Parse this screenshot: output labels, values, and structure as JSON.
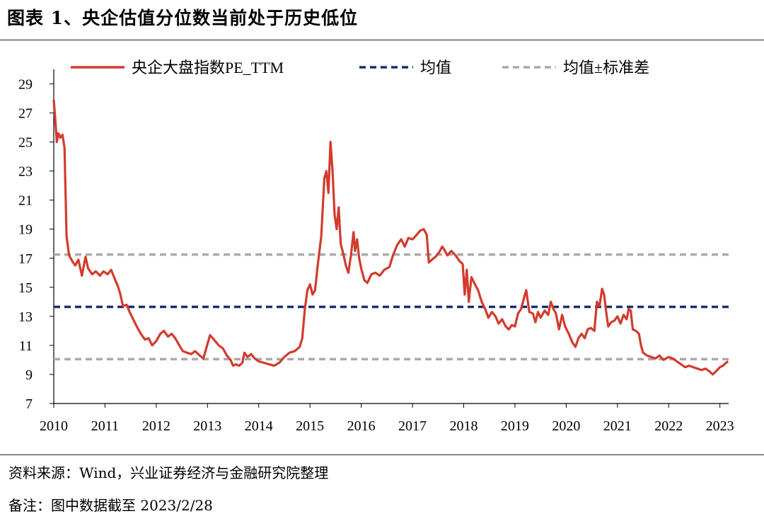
{
  "title": "图表 1、央企估值分位数当前处于历史低位",
  "source_note": "资料来源：Wind，兴业证券经济与金融研究院整理",
  "remark_note": "备注：图中数据截至 2023/2/28",
  "colors": {
    "line": "#d23b2d",
    "mean": "#1a2f6e",
    "band": "#aaaaaa"
  },
  "chart_data": {
    "type": "line",
    "title": "",
    "xlabel": "",
    "ylabel": "",
    "x_ticks": [
      "2010",
      "2011",
      "2012",
      "2013",
      "2014",
      "2015",
      "2016",
      "2017",
      "2018",
      "2019",
      "2020",
      "2021",
      "2022",
      "2023"
    ],
    "y_ticks": [
      7,
      9,
      11,
      13,
      15,
      17,
      19,
      21,
      23,
      25,
      27,
      29
    ],
    "xlim": [
      2010.0,
      2023.17
    ],
    "ylim": [
      7,
      30
    ],
    "grid": false,
    "legend_position": "top",
    "series": [
      {
        "name": "央企大盘指数PE_TTM",
        "style": "solid",
        "color": "#d23b2d",
        "points": [
          [
            2010.0,
            27.9
          ],
          [
            2010.03,
            26.5
          ],
          [
            2010.06,
            25.0
          ],
          [
            2010.09,
            25.6
          ],
          [
            2010.13,
            25.3
          ],
          [
            2010.17,
            25.5
          ],
          [
            2010.21,
            24.6
          ],
          [
            2010.25,
            18.5
          ],
          [
            2010.3,
            17.2
          ],
          [
            2010.36,
            16.8
          ],
          [
            2010.42,
            16.5
          ],
          [
            2010.48,
            16.9
          ],
          [
            2010.55,
            15.8
          ],
          [
            2010.62,
            17.1
          ],
          [
            2010.67,
            16.3
          ],
          [
            2010.75,
            15.9
          ],
          [
            2010.82,
            16.1
          ],
          [
            2010.9,
            15.8
          ],
          [
            2010.97,
            16.1
          ],
          [
            2011.05,
            15.9
          ],
          [
            2011.12,
            16.2
          ],
          [
            2011.2,
            15.5
          ],
          [
            2011.25,
            15.1
          ],
          [
            2011.3,
            14.5
          ],
          [
            2011.35,
            13.7
          ],
          [
            2011.42,
            13.8
          ],
          [
            2011.48,
            13.3
          ],
          [
            2011.55,
            12.8
          ],
          [
            2011.62,
            12.3
          ],
          [
            2011.7,
            11.8
          ],
          [
            2011.78,
            11.4
          ],
          [
            2011.85,
            11.5
          ],
          [
            2011.92,
            11.0
          ],
          [
            2012.0,
            11.3
          ],
          [
            2012.08,
            11.8
          ],
          [
            2012.15,
            12.0
          ],
          [
            2012.23,
            11.6
          ],
          [
            2012.3,
            11.8
          ],
          [
            2012.37,
            11.5
          ],
          [
            2012.45,
            11.0
          ],
          [
            2012.52,
            10.6
          ],
          [
            2012.6,
            10.5
          ],
          [
            2012.68,
            10.4
          ],
          [
            2012.76,
            10.6
          ],
          [
            2012.85,
            10.3
          ],
          [
            2012.92,
            10.1
          ],
          [
            2013.0,
            11.1
          ],
          [
            2013.05,
            11.7
          ],
          [
            2013.1,
            11.5
          ],
          [
            2013.15,
            11.3
          ],
          [
            2013.22,
            11.0
          ],
          [
            2013.3,
            10.8
          ],
          [
            2013.38,
            10.3
          ],
          [
            2013.45,
            10.0
          ],
          [
            2013.5,
            9.6
          ],
          [
            2013.55,
            9.7
          ],
          [
            2013.62,
            9.6
          ],
          [
            2013.68,
            9.8
          ],
          [
            2013.72,
            10.5
          ],
          [
            2013.78,
            10.2
          ],
          [
            2013.85,
            10.4
          ],
          [
            2013.92,
            10.1
          ],
          [
            2014.0,
            9.9
          ],
          [
            2014.1,
            9.8
          ],
          [
            2014.2,
            9.7
          ],
          [
            2014.3,
            9.6
          ],
          [
            2014.4,
            9.8
          ],
          [
            2014.5,
            10.2
          ],
          [
            2014.6,
            10.5
          ],
          [
            2014.7,
            10.6
          ],
          [
            2014.8,
            10.9
          ],
          [
            2014.85,
            11.5
          ],
          [
            2014.9,
            13.5
          ],
          [
            2014.95,
            14.8
          ],
          [
            2015.0,
            15.2
          ],
          [
            2015.05,
            14.5
          ],
          [
            2015.1,
            14.8
          ],
          [
            2015.15,
            16.5
          ],
          [
            2015.22,
            18.5
          ],
          [
            2015.28,
            22.5
          ],
          [
            2015.32,
            23.0
          ],
          [
            2015.36,
            21.5
          ],
          [
            2015.4,
            25.0
          ],
          [
            2015.44,
            23.0
          ],
          [
            2015.48,
            20.0
          ],
          [
            2015.52,
            19.0
          ],
          [
            2015.56,
            20.5
          ],
          [
            2015.6,
            18.0
          ],
          [
            2015.65,
            17.3
          ],
          [
            2015.7,
            16.5
          ],
          [
            2015.75,
            16.0
          ],
          [
            2015.8,
            17.2
          ],
          [
            2015.85,
            18.8
          ],
          [
            2015.88,
            17.5
          ],
          [
            2015.92,
            18.3
          ],
          [
            2015.96,
            17.0
          ],
          [
            2016.0,
            16.3
          ],
          [
            2016.06,
            15.5
          ],
          [
            2016.12,
            15.3
          ],
          [
            2016.2,
            15.9
          ],
          [
            2016.28,
            16.0
          ],
          [
            2016.36,
            15.8
          ],
          [
            2016.45,
            16.2
          ],
          [
            2016.55,
            16.4
          ],
          [
            2016.62,
            17.2
          ],
          [
            2016.7,
            17.9
          ],
          [
            2016.78,
            18.3
          ],
          [
            2016.85,
            17.8
          ],
          [
            2016.92,
            18.4
          ],
          [
            2017.0,
            18.3
          ],
          [
            2017.08,
            18.6
          ],
          [
            2017.15,
            18.9
          ],
          [
            2017.22,
            19.0
          ],
          [
            2017.28,
            18.6
          ],
          [
            2017.32,
            16.7
          ],
          [
            2017.38,
            16.9
          ],
          [
            2017.45,
            17.1
          ],
          [
            2017.52,
            17.4
          ],
          [
            2017.58,
            17.8
          ],
          [
            2017.62,
            17.6
          ],
          [
            2017.68,
            17.2
          ],
          [
            2017.76,
            17.5
          ],
          [
            2017.84,
            17.2
          ],
          [
            2017.92,
            16.8
          ],
          [
            2017.98,
            16.6
          ],
          [
            2018.02,
            14.5
          ],
          [
            2018.06,
            16.2
          ],
          [
            2018.1,
            14.0
          ],
          [
            2018.15,
            15.7
          ],
          [
            2018.22,
            15.2
          ],
          [
            2018.28,
            14.8
          ],
          [
            2018.35,
            14.0
          ],
          [
            2018.42,
            13.5
          ],
          [
            2018.48,
            12.9
          ],
          [
            2018.55,
            13.3
          ],
          [
            2018.62,
            13.0
          ],
          [
            2018.68,
            12.5
          ],
          [
            2018.75,
            12.8
          ],
          [
            2018.82,
            12.3
          ],
          [
            2018.88,
            12.1
          ],
          [
            2018.94,
            12.4
          ],
          [
            2019.0,
            12.3
          ],
          [
            2019.06,
            13.2
          ],
          [
            2019.12,
            13.5
          ],
          [
            2019.18,
            14.3
          ],
          [
            2019.22,
            14.8
          ],
          [
            2019.28,
            13.3
          ],
          [
            2019.35,
            13.2
          ],
          [
            2019.4,
            12.6
          ],
          [
            2019.45,
            13.3
          ],
          [
            2019.5,
            12.9
          ],
          [
            2019.58,
            13.4
          ],
          [
            2019.65,
            13.1
          ],
          [
            2019.7,
            14.0
          ],
          [
            2019.75,
            13.5
          ],
          [
            2019.8,
            13.2
          ],
          [
            2019.86,
            12.1
          ],
          [
            2019.92,
            13.1
          ],
          [
            2019.98,
            12.3
          ],
          [
            2020.05,
            11.8
          ],
          [
            2020.12,
            11.2
          ],
          [
            2020.18,
            10.9
          ],
          [
            2020.24,
            11.5
          ],
          [
            2020.3,
            11.8
          ],
          [
            2020.36,
            11.5
          ],
          [
            2020.42,
            12.1
          ],
          [
            2020.48,
            12.2
          ],
          [
            2020.55,
            12.0
          ],
          [
            2020.6,
            14.0
          ],
          [
            2020.65,
            13.7
          ],
          [
            2020.7,
            14.9
          ],
          [
            2020.74,
            14.5
          ],
          [
            2020.78,
            13.3
          ],
          [
            2020.82,
            12.3
          ],
          [
            2020.88,
            12.6
          ],
          [
            2020.94,
            12.7
          ],
          [
            2021.0,
            13.0
          ],
          [
            2021.06,
            12.5
          ],
          [
            2021.12,
            13.1
          ],
          [
            2021.18,
            12.8
          ],
          [
            2021.22,
            13.5
          ],
          [
            2021.26,
            13.4
          ],
          [
            2021.3,
            12.1
          ],
          [
            2021.36,
            12.0
          ],
          [
            2021.42,
            11.8
          ],
          [
            2021.46,
            11.0
          ],
          [
            2021.5,
            10.5
          ],
          [
            2021.58,
            10.3
          ],
          [
            2021.66,
            10.2
          ],
          [
            2021.74,
            10.1
          ],
          [
            2021.82,
            10.3
          ],
          [
            2021.9,
            10.0
          ],
          [
            2022.0,
            10.2
          ],
          [
            2022.08,
            10.1
          ],
          [
            2022.16,
            9.9
          ],
          [
            2022.24,
            9.7
          ],
          [
            2022.32,
            9.5
          ],
          [
            2022.4,
            9.6
          ],
          [
            2022.48,
            9.5
          ],
          [
            2022.56,
            9.4
          ],
          [
            2022.64,
            9.3
          ],
          [
            2022.72,
            9.4
          ],
          [
            2022.8,
            9.2
          ],
          [
            2022.86,
            9.0
          ],
          [
            2022.92,
            9.2
          ],
          [
            2023.0,
            9.5
          ],
          [
            2023.06,
            9.6
          ],
          [
            2023.12,
            9.8
          ],
          [
            2023.16,
            9.9
          ]
        ]
      },
      {
        "name": "均值",
        "style": "dashed",
        "color": "#1a2f6e",
        "value": 13.65
      },
      {
        "name": "均值±标准差",
        "style": "dashed",
        "color": "#aaaaaa",
        "values": [
          17.25,
          10.05
        ]
      }
    ]
  }
}
